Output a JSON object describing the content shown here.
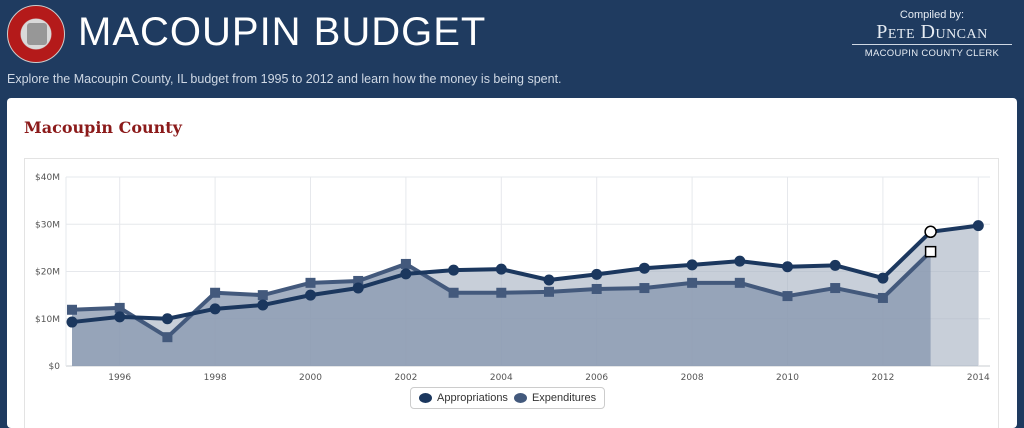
{
  "header": {
    "title": "MACOUPIN BUDGET",
    "subtitle": "Explore the Macoupin County, IL budget from 1995 to 2012 and learn how the money is being spent.",
    "compiled_by_label": "Compiled by:",
    "compiler_name": "Pete Duncan",
    "compiler_role": "MACOUPIN COUNTY CLERK",
    "seal_icon": "county-seal-icon"
  },
  "card": {
    "title": "Macoupin County"
  },
  "colors": {
    "header_bg": "#1f3b60",
    "appropriations": "#1b375e",
    "expenditures": "#43597c",
    "area_fill": "#8596ad",
    "card_title": "#8b1a1a"
  },
  "legend": [
    {
      "label": "Appropriations",
      "color": "#1b375e"
    },
    {
      "label": "Expenditures",
      "color": "#43597c"
    }
  ],
  "chart_data": {
    "type": "area",
    "title": "Macoupin County",
    "xlabel": "",
    "ylabel": "",
    "x": [
      1995,
      1996,
      1997,
      1998,
      1999,
      2000,
      2001,
      2002,
      2003,
      2004,
      2005,
      2006,
      2007,
      2008,
      2009,
      2010,
      2011,
      2012,
      2013,
      2014
    ],
    "x_ticks": [
      "1996",
      "1998",
      "2000",
      "2002",
      "2004",
      "2006",
      "2008",
      "2010",
      "2012",
      "2014"
    ],
    "y_ticks": [
      "$0",
      "$10M",
      "$20M",
      "$30M",
      "$40M"
    ],
    "ylim": [
      0,
      40
    ],
    "grid": true,
    "legend_position": "bottom-center",
    "units": "millions USD",
    "series": [
      {
        "name": "Appropriations",
        "marker": "circle",
        "values": [
          9.3,
          10.4,
          10.0,
          12.1,
          12.9,
          15.0,
          16.5,
          19.5,
          20.3,
          20.5,
          18.2,
          19.4,
          20.7,
          21.4,
          22.2,
          21.0,
          21.3,
          18.6,
          28.4,
          29.7
        ]
      },
      {
        "name": "Expenditures",
        "marker": "square",
        "values": [
          11.9,
          12.3,
          6.1,
          15.5,
          15.0,
          17.6,
          18.0,
          21.6,
          15.5,
          15.5,
          15.7,
          16.3,
          16.5,
          17.6,
          17.6,
          14.8,
          16.5,
          14.4,
          24.2,
          null
        ]
      }
    ],
    "annotations": [
      "2013 points highlighted (hover state): white circle and white square"
    ]
  }
}
